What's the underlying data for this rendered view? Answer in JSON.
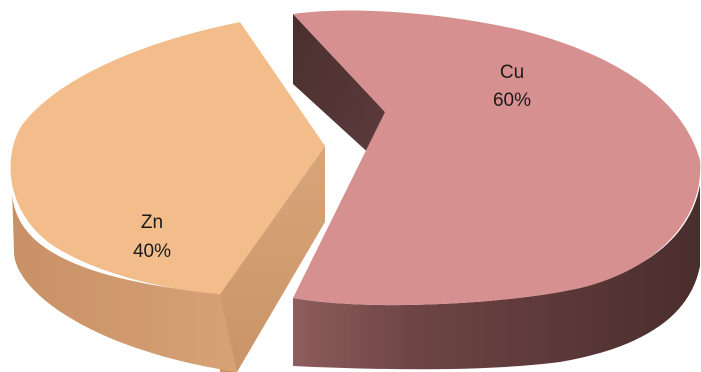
{
  "chart_data": {
    "type": "pie",
    "style": "3d-exploded",
    "slices": [
      {
        "name": "Cu",
        "value": 60,
        "label": "60%",
        "color": "#d79090",
        "side_color": "#5e3939"
      },
      {
        "name": "Zn",
        "value": 40,
        "label": "40%",
        "color": "#f2bd8b",
        "side_color": "#c9956a"
      }
    ]
  }
}
